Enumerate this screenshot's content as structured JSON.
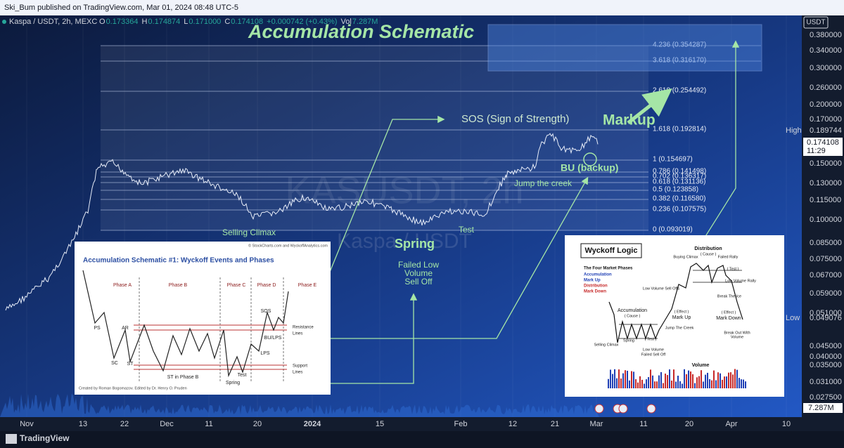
{
  "header": {
    "publisher": "Ski_Bum published on TradingView.com, Mar 01, 2024 08:48 UTC-5"
  },
  "legend": {
    "symbol": "Kaspa / USDT, 2h, MEXC",
    "fields": [
      {
        "key": "O",
        "value": "0.173364"
      },
      {
        "key": "H",
        "value": "0.174874"
      },
      {
        "key": "L",
        "value": "0.171000"
      },
      {
        "key": "C",
        "value": "0.174108"
      },
      {
        "key": "",
        "value": "+0.000742 (+0.43%)"
      },
      {
        "key": "Vol",
        "value": "7.287M"
      }
    ]
  },
  "watermark": {
    "symbol": "KASUSDT, 2h",
    "name": "Kaspa / USDT"
  },
  "annotations": {
    "title": "Accumulation Schematic",
    "sos": "SOS (Sign of Strength)",
    "markup": "Markup",
    "bu": "BU (backup)",
    "jump_creek": "Jump the creek",
    "selling_climax": "Selling Climax",
    "spring": "Spring",
    "test": "Test",
    "failed_low": [
      "Failed Low",
      "Volume",
      "Sell Off"
    ]
  },
  "fib_levels": [
    "4.236 (0.354287)",
    "3.618 (0.316170)",
    "2.618 (0.254492)",
    "1.618 (0.192814)",
    "1 (0.154697)",
    "0.786 (0.141498)",
    "0.702 (0.136317)",
    "0.618 (0.131136)",
    "0.5 (0.123858)",
    "0.382 (0.116580)",
    "0.236 (0.107575)",
    "0 (0.093019)"
  ],
  "price_axis": {
    "currency": "USDT",
    "labels": [
      "0.380000",
      "0.340000",
      "0.300000",
      "0.260000",
      "0.200000",
      "0.170000",
      "0.150000",
      "0.130000",
      "0.115000",
      "0.100000",
      "0.085000",
      "0.075000",
      "0.067000",
      "0.059000",
      "0.051000",
      "0.045000",
      "0.040000",
      "0.035000",
      "0.031000",
      "0.027500"
    ],
    "high": {
      "label": "High",
      "value": "0.189744"
    },
    "last": {
      "value": "0.174108",
      "countdown": "11:29"
    },
    "low": {
      "label": "Low",
      "value": "0.049076"
    },
    "volume": "7.287M"
  },
  "time_axis": [
    "Nov",
    "13",
    "22",
    "Dec",
    "11",
    "20",
    "2024",
    "15",
    "Feb",
    "12",
    "21",
    "Mar",
    "11",
    "20",
    "Apr",
    "10"
  ],
  "footer": {
    "brand": "TradingView"
  },
  "inset_left": {
    "credit": "© StockCharts.com and WyckoffAnalytics.com",
    "title": "Accumulation Schematic #1: Wyckoff Events and Phases",
    "phases": [
      "Phase A",
      "Phase B",
      "Phase C",
      "Phase D",
      "Phase E"
    ],
    "events": [
      "PS",
      "AR",
      "SC",
      "ST",
      "ST in Phase B",
      "Spring",
      "Test",
      "LPS",
      "BU/LPS",
      "SOS"
    ],
    "resistance": [
      "Resistance",
      "Lines"
    ],
    "support": [
      "Support",
      "Lines"
    ],
    "created_by": "Created by Roman Bogomazov. Edited by Dr. Henry O. Pruden"
  },
  "inset_right": {
    "title": "Wyckoff Logic",
    "phases_heading": "The Four Market Phases",
    "phases": [
      "Accumulation",
      "Mark Up",
      "Distribution",
      "Mark Down"
    ],
    "labels": [
      "Distribution",
      "( Cause )",
      "Buying Climax",
      "Failed Rally",
      "( Test )",
      "Low Volume Sell Offs",
      "Low Volume Rally",
      "Break The Ice",
      "Accumulation",
      "( Cause )",
      "( Effect )",
      "Mark Up",
      "( Effect )",
      "Mark Down",
      "Jump The Creek",
      "Spring",
      "( Test )",
      "Selling Climax",
      "Low Volume",
      "Failed Sell Off",
      "Break Out With",
      "Volume",
      "Volume"
    ]
  }
}
